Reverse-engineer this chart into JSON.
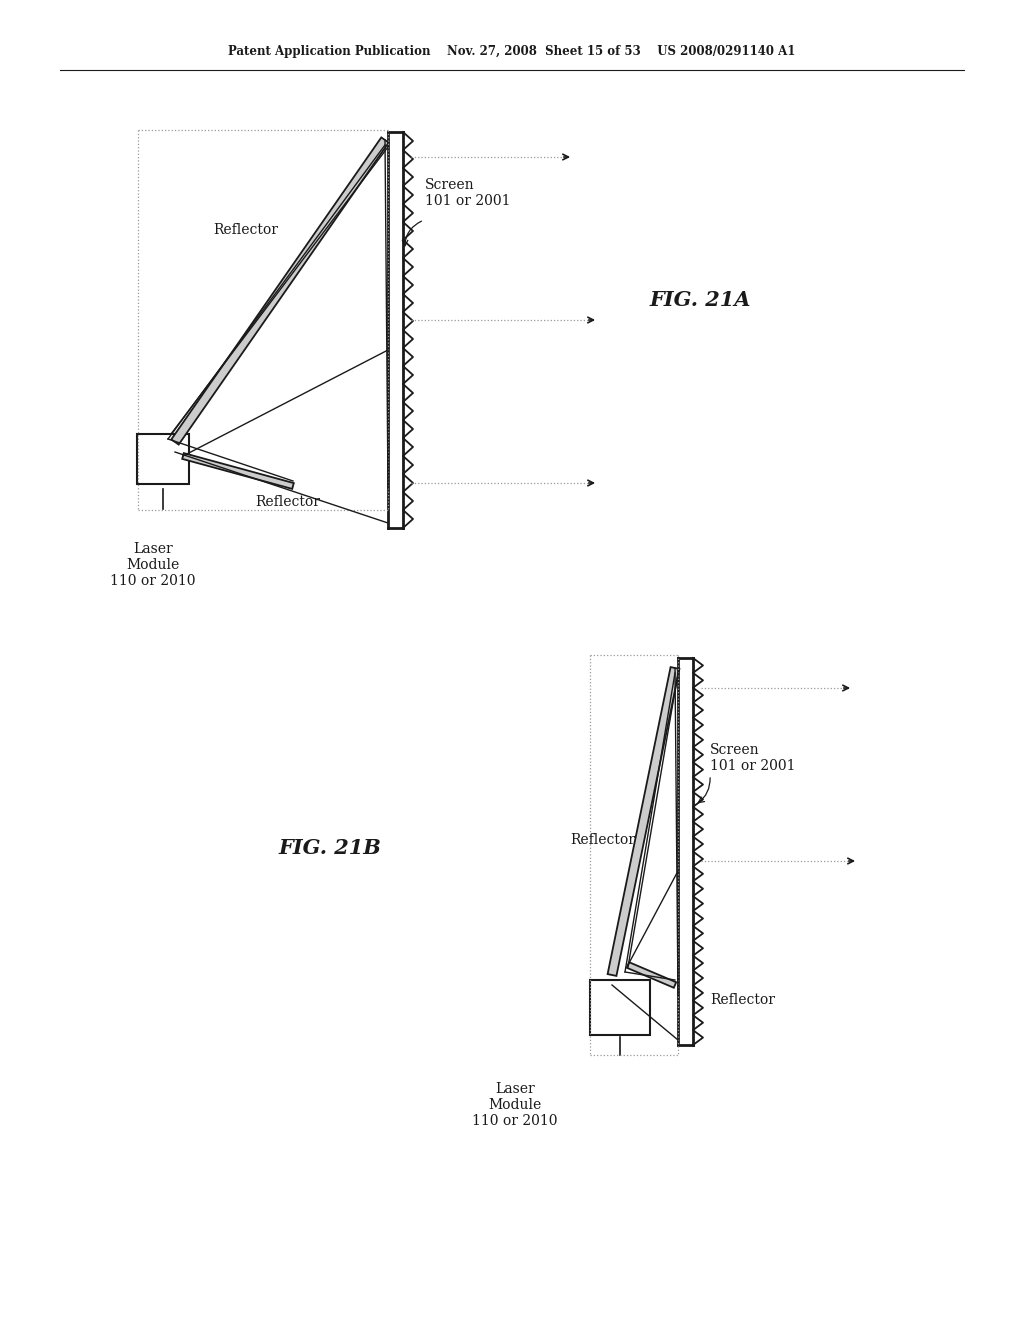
{
  "header_text": "Patent Application Publication    Nov. 27, 2008  Sheet 15 of 53    US 2008/0291140 A1",
  "fig21a_label": "FIG. 21A",
  "fig21b_label": "FIG. 21B",
  "bg_color": "#ffffff",
  "line_color": "#1a1a1a",
  "gray_color": "#999999"
}
